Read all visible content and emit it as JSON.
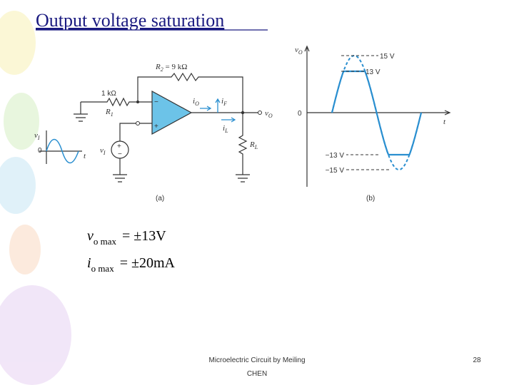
{
  "header": {
    "title": "Output voltage saturation"
  },
  "figure_a": {
    "r2": {
      "text": "R",
      "sub": "2",
      "after": " = 9 kΩ"
    },
    "r1_value": "1 kΩ",
    "r1": {
      "text": "R",
      "sub": "1"
    },
    "io": {
      "text": "i",
      "sub": "O"
    },
    "if": {
      "text": "i",
      "sub": "F"
    },
    "il": {
      "text": "i",
      "sub": "L"
    },
    "vo": {
      "text": "v",
      "sub": "O"
    },
    "rl": {
      "text": "R",
      "sub": "L"
    },
    "vi": {
      "text": "v",
      "sub": "I"
    },
    "wave_v": {
      "text": "v",
      "sub": "I"
    },
    "wave_zero": "0",
    "wave_t": "t",
    "caption": "(a)"
  },
  "figure_b": {
    "axis_v": {
      "text": "v",
      "sub": "O"
    },
    "zero": "0",
    "t": "t",
    "levels": [
      "15 V",
      "13 V",
      "−13 V",
      "−15 V"
    ],
    "caption": "(b)"
  },
  "equations": [
    {
      "var": "v",
      "sub": "o max",
      "rhs": "= ±13V"
    },
    {
      "var": "i",
      "sub": "o max",
      "rhs": "= ±20mA"
    }
  ],
  "footer": {
    "text": [
      "Microelectric Circuit by Meiling",
      "CHEN"
    ],
    "page": "28"
  }
}
